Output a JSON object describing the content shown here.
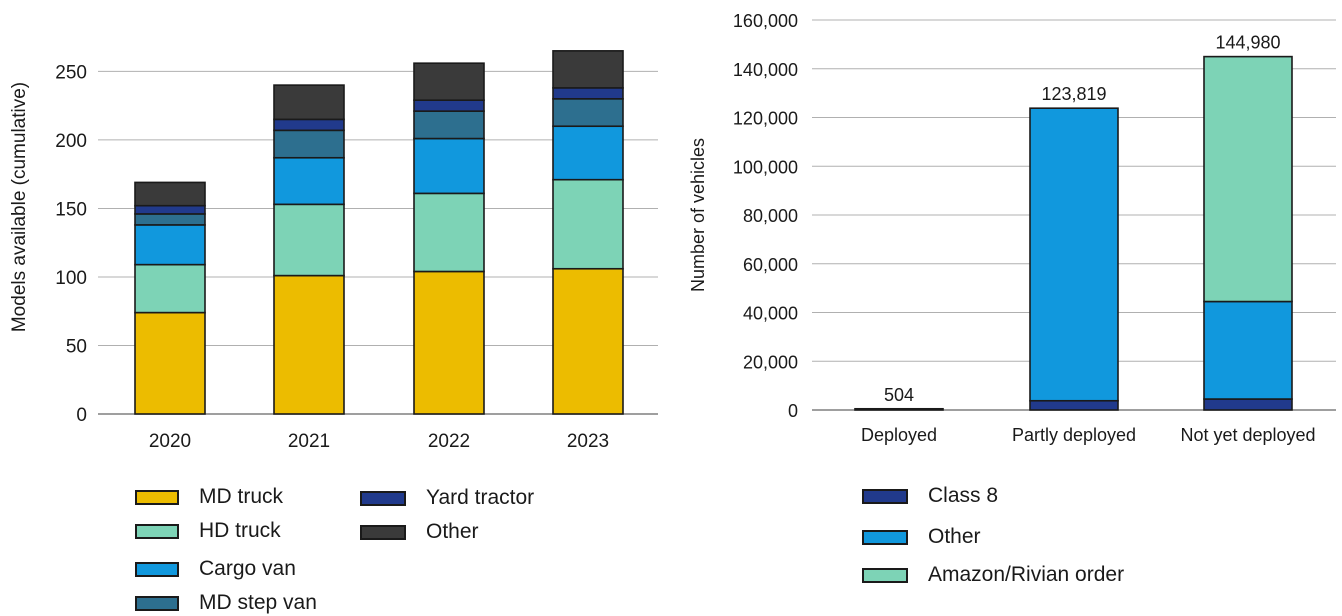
{
  "chart_data": [
    {
      "type": "bar",
      "stacked": true,
      "categories": [
        "2020",
        "2021",
        "2022",
        "2023"
      ],
      "series": [
        {
          "name": "MD truck",
          "color": "#ecbc00",
          "values": [
            74,
            101,
            104,
            106
          ]
        },
        {
          "name": "HD truck",
          "color": "#7dd3b6",
          "values": [
            35,
            52,
            57,
            65
          ]
        },
        {
          "name": "Cargo van",
          "color": "#1198dd",
          "values": [
            29,
            34,
            40,
            39
          ]
        },
        {
          "name": "MD step van",
          "color": "#2d6f8f",
          "values": [
            8,
            20,
            20,
            20
          ]
        },
        {
          "name": "Yard tractor",
          "color": "#213a8c",
          "values": [
            6,
            8,
            8,
            8
          ]
        },
        {
          "name": "Other",
          "color": "#3a3a3a",
          "values": [
            17,
            25,
            27,
            27
          ]
        }
      ],
      "ylabel": "Models available (cumulative)",
      "ylim": [
        0,
        270
      ],
      "yticks": [
        "0",
        "50",
        "100",
        "150",
        "200",
        "250"
      ],
      "grid": true,
      "legend_position": "bottom"
    },
    {
      "type": "bar",
      "stacked": true,
      "categories": [
        "Deployed",
        "Partly deployed",
        "Not yet deployed"
      ],
      "series": [
        {
          "name": "Class 8",
          "color": "#213a8c",
          "values": [
            504,
            3800,
            4500
          ]
        },
        {
          "name": "Other",
          "color": "#1198dd",
          "values": [
            0,
            120019,
            40000
          ]
        },
        {
          "name": "Amazon/Rivian order",
          "color": "#7dd3b6",
          "values": [
            0,
            0,
            100480
          ]
        }
      ],
      "totals": [
        "504",
        "123,819",
        "144,980"
      ],
      "ylabel": "Number of vehicles",
      "ylim": [
        0,
        160000
      ],
      "yticks": [
        "0",
        "20,000",
        "40,000",
        "60,000",
        "80,000",
        "100,000",
        "120,000",
        "140,000",
        "160,000"
      ],
      "grid": true,
      "legend_position": "bottom"
    }
  ]
}
